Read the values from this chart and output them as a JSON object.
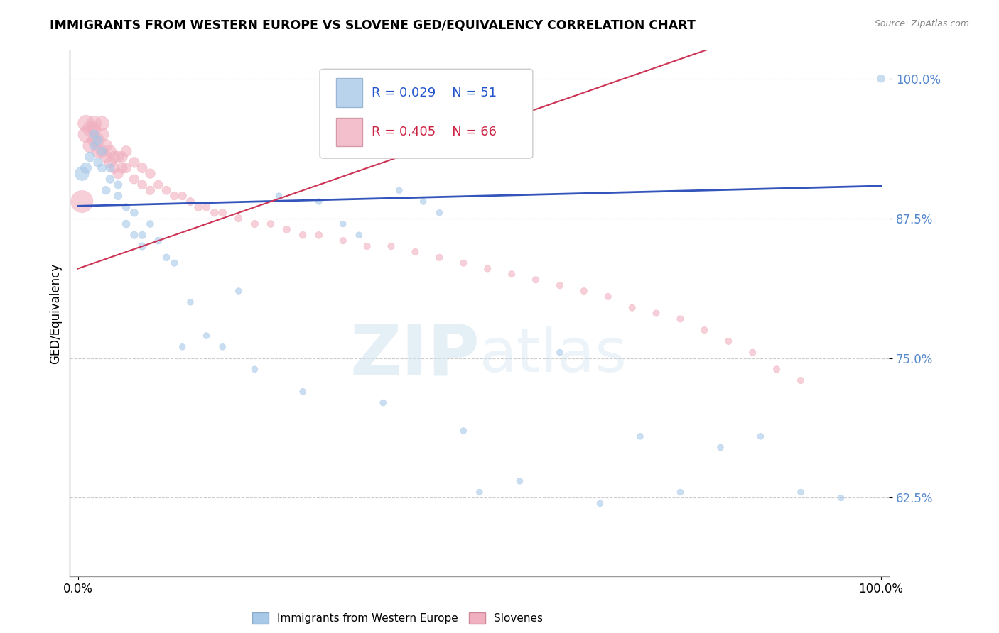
{
  "title": "IMMIGRANTS FROM WESTERN EUROPE VS SLOVENE GED/EQUIVALENCY CORRELATION CHART",
  "source": "Source: ZipAtlas.com",
  "ylabel": "GED/Equivalency",
  "ylim": [
    0.555,
    1.025
  ],
  "xlim": [
    -0.01,
    1.01
  ],
  "yticks": [
    0.625,
    0.75,
    0.875,
    1.0
  ],
  "ytick_labels": [
    "62.5%",
    "75.0%",
    "87.5%",
    "100.0%"
  ],
  "xtick_labels": [
    "0.0%",
    "100.0%"
  ],
  "legend_r_blue": "R = 0.029",
  "legend_n_blue": "N = 51",
  "legend_r_pink": "R = 0.405",
  "legend_n_pink": "N = 66",
  "blue_color": "#a8c8e8",
  "pink_color": "#f0b0c0",
  "trendline_blue": "#3355bb",
  "trendline_pink": "#cc3355",
  "watermark_zip": "ZIP",
  "watermark_atlas": "atlas",
  "blue_x": [
    0.005,
    0.01,
    0.015,
    0.02,
    0.02,
    0.025,
    0.025,
    0.03,
    0.03,
    0.035,
    0.04,
    0.04,
    0.05,
    0.05,
    0.06,
    0.06,
    0.07,
    0.07,
    0.08,
    0.08,
    0.09,
    0.1,
    0.11,
    0.12,
    0.13,
    0.14,
    0.16,
    0.18,
    0.2,
    0.22,
    0.25,
    0.28,
    0.3,
    0.33,
    0.35,
    0.38,
    0.4,
    0.43,
    0.45,
    0.48,
    0.5,
    0.55,
    0.6,
    0.65,
    0.7,
    0.75,
    0.8,
    0.85,
    0.9,
    0.95,
    1.0
  ],
  "blue_y": [
    0.915,
    0.92,
    0.93,
    0.94,
    0.95,
    0.925,
    0.945,
    0.92,
    0.935,
    0.9,
    0.92,
    0.91,
    0.905,
    0.895,
    0.885,
    0.87,
    0.88,
    0.86,
    0.85,
    0.86,
    0.87,
    0.855,
    0.84,
    0.835,
    0.76,
    0.8,
    0.77,
    0.76,
    0.81,
    0.74,
    0.895,
    0.72,
    0.89,
    0.87,
    0.86,
    0.71,
    0.9,
    0.89,
    0.88,
    0.685,
    0.63,
    0.64,
    0.755,
    0.62,
    0.68,
    0.63,
    0.67,
    0.68,
    0.63,
    0.625,
    1.0
  ],
  "blue_sizes": [
    200,
    120,
    100,
    80,
    90,
    80,
    85,
    75,
    80,
    70,
    75,
    70,
    65,
    65,
    60,
    60,
    60,
    55,
    55,
    55,
    50,
    50,
    50,
    45,
    40,
    40,
    40,
    40,
    40,
    40,
    40,
    40,
    40,
    40,
    40,
    40,
    40,
    40,
    40,
    40,
    40,
    40,
    40,
    40,
    40,
    40,
    40,
    40,
    40,
    40,
    60
  ],
  "pink_x": [
    0.005,
    0.01,
    0.01,
    0.015,
    0.015,
    0.02,
    0.02,
    0.02,
    0.025,
    0.025,
    0.03,
    0.03,
    0.03,
    0.035,
    0.035,
    0.04,
    0.04,
    0.045,
    0.045,
    0.05,
    0.05,
    0.055,
    0.055,
    0.06,
    0.06,
    0.07,
    0.07,
    0.08,
    0.08,
    0.09,
    0.09,
    0.1,
    0.11,
    0.12,
    0.13,
    0.14,
    0.15,
    0.16,
    0.17,
    0.18,
    0.2,
    0.22,
    0.24,
    0.26,
    0.28,
    0.3,
    0.33,
    0.36,
    0.39,
    0.42,
    0.45,
    0.48,
    0.51,
    0.54,
    0.57,
    0.6,
    0.63,
    0.66,
    0.69,
    0.72,
    0.75,
    0.78,
    0.81,
    0.84,
    0.87,
    0.9
  ],
  "pink_y": [
    0.89,
    0.95,
    0.96,
    0.94,
    0.955,
    0.945,
    0.955,
    0.96,
    0.935,
    0.945,
    0.935,
    0.95,
    0.96,
    0.93,
    0.94,
    0.925,
    0.935,
    0.92,
    0.93,
    0.915,
    0.93,
    0.92,
    0.93,
    0.92,
    0.935,
    0.91,
    0.925,
    0.905,
    0.92,
    0.9,
    0.915,
    0.905,
    0.9,
    0.895,
    0.895,
    0.89,
    0.885,
    0.885,
    0.88,
    0.88,
    0.875,
    0.87,
    0.87,
    0.865,
    0.86,
    0.86,
    0.855,
    0.85,
    0.85,
    0.845,
    0.84,
    0.835,
    0.83,
    0.825,
    0.82,
    0.815,
    0.81,
    0.805,
    0.795,
    0.79,
    0.785,
    0.775,
    0.765,
    0.755,
    0.74,
    0.73
  ],
  "pink_sizes": [
    500,
    250,
    270,
    200,
    220,
    180,
    200,
    220,
    160,
    180,
    160,
    180,
    200,
    140,
    160,
    130,
    150,
    120,
    140,
    110,
    130,
    110,
    120,
    100,
    120,
    90,
    110,
    85,
    100,
    80,
    95,
    80,
    75,
    70,
    70,
    65,
    65,
    60,
    60,
    60,
    55,
    55,
    50,
    50,
    50,
    50,
    45,
    45,
    45,
    45,
    45,
    45,
    45,
    45,
    45,
    45,
    45,
    45,
    45,
    45,
    45,
    45,
    45,
    45,
    45,
    45
  ]
}
